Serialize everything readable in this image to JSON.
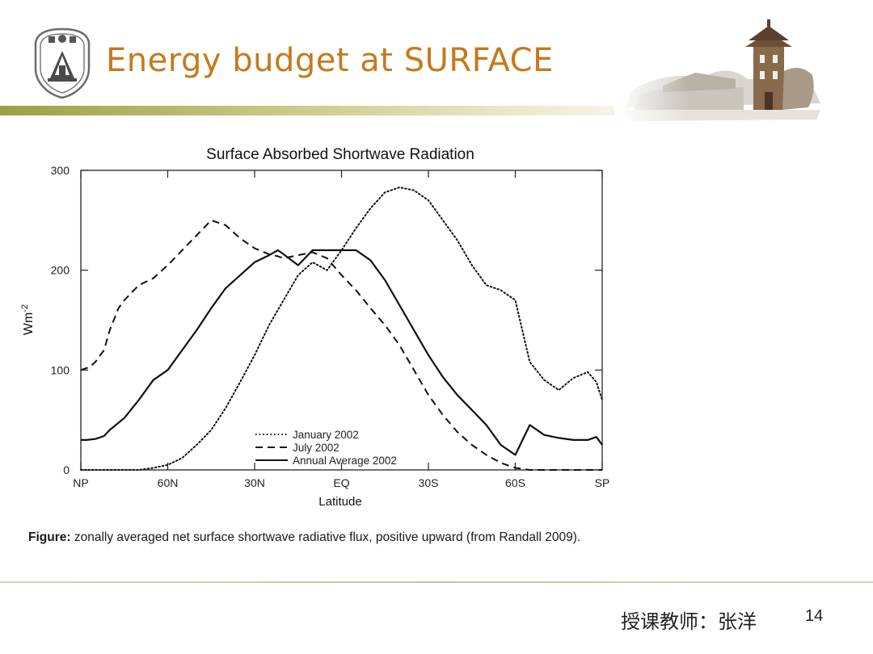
{
  "slide": {
    "title": "Energy budget at SURFACE",
    "caption_label": "Figure:",
    "caption_text": " zonally averaged net surface shortwave radiative flux, positive upward (from Randall 2009).",
    "footer_text": "授课教师：张洋",
    "page_number": "14",
    "accent_color": "#c47a1c"
  },
  "chart_data": {
    "type": "line",
    "title": "Surface Absorbed Shortwave Radiation",
    "xlabel": "Latitude",
    "ylabel": "Wm-2",
    "ylabel_base": "Wm",
    "ylabel_exp": "-2",
    "ylim": [
      0,
      300
    ],
    "yticks": [
      0,
      100,
      200,
      300
    ],
    "ytick_labels": [
      "0",
      "100",
      "200",
      "300"
    ],
    "xlim": [
      90,
      -90
    ],
    "xticks": [
      90,
      60,
      30,
      0,
      -30,
      -60,
      -90
    ],
    "xtick_labels": [
      "NP",
      "60N",
      "30N",
      "EQ",
      "30S",
      "60S",
      "SP"
    ],
    "grid": false,
    "legend_position": "bottom-center",
    "series": [
      {
        "name": "January 2002",
        "style": "dotted",
        "x": [
          90,
          80,
          70,
          65,
          60,
          55,
          50,
          45,
          40,
          35,
          30,
          25,
          20,
          15,
          10,
          5,
          0,
          -5,
          -10,
          -15,
          -20,
          -25,
          -30,
          -35,
          -40,
          -45,
          -50,
          -55,
          -60,
          -65,
          -70,
          -75,
          -80,
          -85,
          -88,
          -90
        ],
        "y": [
          0,
          0,
          0,
          2,
          5,
          12,
          25,
          40,
          62,
          88,
          115,
          145,
          170,
          195,
          208,
          200,
          220,
          242,
          262,
          278,
          283,
          280,
          270,
          250,
          230,
          205,
          185,
          180,
          170,
          108,
          90,
          80,
          92,
          98,
          88,
          70
        ]
      },
      {
        "name": "July 2002",
        "style": "dashed",
        "x": [
          90,
          87,
          85,
          82,
          80,
          77,
          75,
          70,
          65,
          60,
          55,
          50,
          45,
          40,
          35,
          30,
          25,
          22,
          20,
          15,
          10,
          5,
          0,
          -5,
          -10,
          -15,
          -20,
          -25,
          -30,
          -35,
          -40,
          -45,
          -50,
          -55,
          -60,
          -65,
          -70,
          -80,
          -90
        ],
        "y": [
          100,
          103,
          108,
          120,
          140,
          162,
          170,
          185,
          192,
          205,
          220,
          235,
          250,
          245,
          232,
          222,
          216,
          214,
          212,
          215,
          218,
          212,
          195,
          180,
          162,
          145,
          125,
          100,
          75,
          55,
          38,
          25,
          15,
          7,
          2,
          0,
          0,
          0,
          0
        ]
      },
      {
        "name": "Annual Average 2002",
        "style": "solid",
        "x": [
          90,
          88,
          85,
          82,
          80,
          75,
          70,
          65,
          60,
          55,
          50,
          45,
          40,
          35,
          30,
          25,
          22,
          20,
          15,
          10,
          5,
          0,
          -5,
          -10,
          -15,
          -20,
          -25,
          -30,
          -35,
          -40,
          -45,
          -50,
          -55,
          -60,
          -65,
          -70,
          -75,
          -80,
          -85,
          -88,
          -90
        ],
        "y": [
          30,
          30,
          31,
          34,
          40,
          52,
          70,
          90,
          100,
          120,
          140,
          162,
          182,
          195,
          208,
          215,
          220,
          216,
          205,
          220,
          220,
          220,
          220,
          210,
          190,
          165,
          140,
          115,
          93,
          75,
          60,
          45,
          25,
          15,
          45,
          35,
          32,
          30,
          30,
          33,
          25
        ]
      }
    ]
  }
}
